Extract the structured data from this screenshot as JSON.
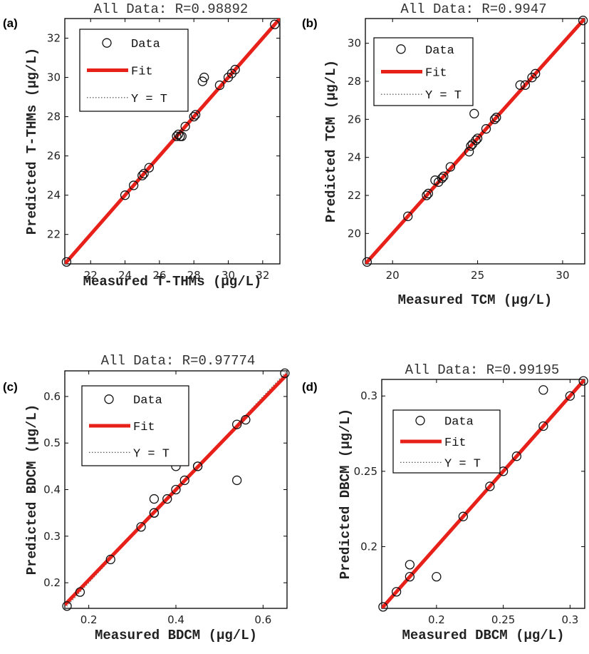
{
  "chart_data": [
    {
      "type": "scatter",
      "panel_label": "(a)",
      "title": "All Data: R=0.98892",
      "xlabel": "Measured T-THMs (μg/L)",
      "ylabel": "Predicted T-THMs (μg/L)",
      "xlim": [
        20.5,
        33
      ],
      "ylim": [
        20.5,
        33
      ],
      "xticks": [
        "22",
        "24",
        "26",
        "28",
        "30",
        "32"
      ],
      "yticks": [
        "22",
        "24",
        "26",
        "28",
        "30",
        "32"
      ],
      "grid": false,
      "legend": {
        "placement": "top-left",
        "entries": [
          "Data",
          "Fit",
          "Y = T"
        ]
      },
      "fit": {
        "slope": 1.0,
        "intercept": 0.0
      },
      "series": [
        {
          "name": "Data",
          "x": [
            20.6,
            24.0,
            24.5,
            25.0,
            25.1,
            25.4,
            27.0,
            27.1,
            27.2,
            27.3,
            27.5,
            28.0,
            28.1,
            28.5,
            28.6,
            29.5,
            30.0,
            30.2,
            30.4,
            32.7
          ],
          "y": [
            20.6,
            24.0,
            24.5,
            25.0,
            25.1,
            25.4,
            27.0,
            27.1,
            27.0,
            27.0,
            27.5,
            28.0,
            28.1,
            29.8,
            30.0,
            29.6,
            30.0,
            30.2,
            30.4,
            32.7
          ]
        }
      ]
    },
    {
      "type": "scatter",
      "panel_label": "(b)",
      "title": "All Data: R=0.9947",
      "xlabel": "Measured TCM (μg/L)",
      "ylabel": "Predicted TCM (μg/L)",
      "xlim": [
        18.4,
        31.3
      ],
      "ylim": [
        18.4,
        31.3
      ],
      "xticks": [
        "20",
        "25",
        "30"
      ],
      "yticks": [
        "20",
        "22",
        "24",
        "26",
        "28",
        "30"
      ],
      "grid": false,
      "legend": {
        "placement": "top-left",
        "entries": [
          "Data",
          "Fit",
          "Y = T"
        ]
      },
      "fit": {
        "slope": 1.0,
        "intercept": 0.0
      },
      "series": [
        {
          "name": "Data",
          "x": [
            18.5,
            20.9,
            22.0,
            22.1,
            22.5,
            22.7,
            22.9,
            23.0,
            23.4,
            24.5,
            24.6,
            24.7,
            24.8,
            24.9,
            25.0,
            25.5,
            26.0,
            26.1,
            27.5,
            27.8,
            28.2,
            28.4,
            31.2
          ],
          "y": [
            18.5,
            20.9,
            22.0,
            22.1,
            22.8,
            22.7,
            22.9,
            23.0,
            23.5,
            24.3,
            24.6,
            24.7,
            26.3,
            24.9,
            25.0,
            25.5,
            26.0,
            26.1,
            27.8,
            27.8,
            28.2,
            28.4,
            31.2
          ]
        }
      ]
    },
    {
      "type": "scatter",
      "panel_label": "(c)",
      "title": "All Data: R=0.97774",
      "xlabel": "Measured BDCM (μg/L)",
      "ylabel": "Predicted BDCM (μg/L)",
      "xlim": [
        0.145,
        0.655
      ],
      "ylim": [
        0.145,
        0.655
      ],
      "xticks": [
        "0.2",
        "0.4",
        "0.6"
      ],
      "yticks": [
        "0.2",
        "0.3",
        "0.4",
        "0.5",
        "0.6"
      ],
      "grid": false,
      "legend": {
        "placement": "top-left",
        "entries": [
          "Data",
          "Fit",
          "Y = T"
        ]
      },
      "fit": {
        "slope": 0.97,
        "intercept": 0.012
      },
      "series": [
        {
          "name": "Data",
          "x": [
            0.15,
            0.18,
            0.25,
            0.32,
            0.35,
            0.35,
            0.35,
            0.38,
            0.4,
            0.4,
            0.42,
            0.45,
            0.45,
            0.54,
            0.54,
            0.56,
            0.65
          ],
          "y": [
            0.15,
            0.18,
            0.25,
            0.32,
            0.35,
            0.35,
            0.38,
            0.38,
            0.4,
            0.45,
            0.42,
            0.45,
            0.45,
            0.54,
            0.42,
            0.55,
            0.65
          ]
        }
      ]
    },
    {
      "type": "scatter",
      "panel_label": "(d)",
      "title": "All Data: R=0.99195",
      "xlabel": "Measured DBCM (μg/L)",
      "ylabel": "Predicted DBCM (μg/L)",
      "xlim": [
        0.159,
        0.311
      ],
      "ylim": [
        0.159,
        0.311
      ],
      "xticks": [
        "0.2",
        "0.25",
        "0.3"
      ],
      "yticks": [
        "0.2",
        "0.25",
        "0.3"
      ],
      "grid": false,
      "legend": {
        "placement": "top-left",
        "entries": [
          "Data",
          "Fit",
          "Y = T"
        ]
      },
      "fit": {
        "slope": 1.0,
        "intercept": 0.0
      },
      "series": [
        {
          "name": "Data",
          "x": [
            0.16,
            0.17,
            0.18,
            0.18,
            0.2,
            0.22,
            0.24,
            0.25,
            0.26,
            0.28,
            0.28,
            0.3,
            0.31
          ],
          "y": [
            0.16,
            0.17,
            0.18,
            0.188,
            0.18,
            0.22,
            0.24,
            0.25,
            0.26,
            0.304,
            0.28,
            0.3,
            0.31
          ]
        }
      ]
    }
  ]
}
